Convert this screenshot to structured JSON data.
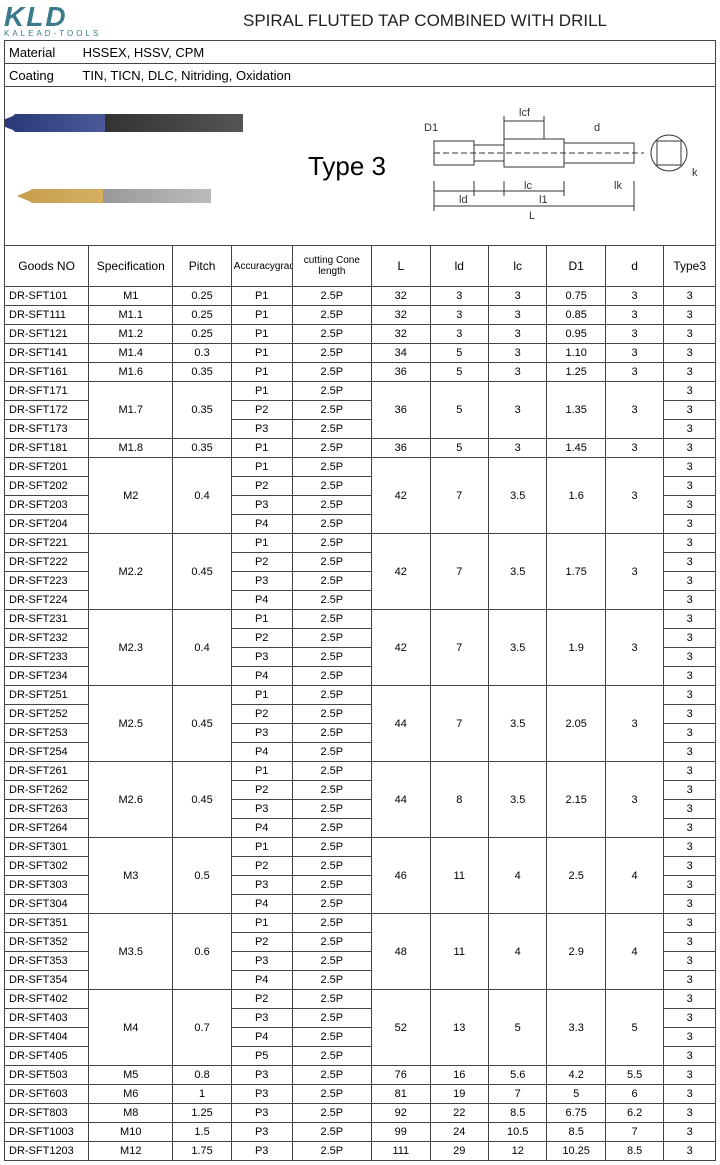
{
  "logo": {
    "main": "KLD",
    "sub": "KALEAD-TOOLS"
  },
  "title": "SPIRAL FLUTED TAP COMBINED WITH DRILL",
  "meta": {
    "material_label": "Material",
    "material_value": "HSSEX,  HSSV,  CPM",
    "coating_label": "Coating",
    "coating_value": "TIN,  TICN,  DLC, Nitriding,  Oxidation"
  },
  "type_label": "Type 3",
  "diagram_labels": {
    "D1": "D1",
    "lcf": "lcf",
    "d": "d",
    "ld": "ld",
    "lc": "lc",
    "l1": "l1",
    "lk": "lk",
    "L": "L",
    "k": "k"
  },
  "columns": [
    "Goods NO",
    "Specification",
    "Pitch",
    "Accuracygrade",
    "cutting Cone length",
    "L",
    "ld",
    "lc",
    "D1",
    "d",
    "Type3"
  ],
  "groups": [
    {
      "rows": [
        {
          "g": "DR-SFT101",
          "acc": "P1",
          "cone": "2.5P",
          "t": "3"
        }
      ],
      "spec": "M1",
      "pitch": "0.25",
      "L": "32",
      "ld": "3",
      "lc": "3",
      "D1": "0.75",
      "d": "3"
    },
    {
      "rows": [
        {
          "g": "DR-SFT111",
          "acc": "P1",
          "cone": "2.5P",
          "t": "3"
        }
      ],
      "spec": "M1.1",
      "pitch": "0.25",
      "L": "32",
      "ld": "3",
      "lc": "3",
      "D1": "0.85",
      "d": "3"
    },
    {
      "rows": [
        {
          "g": "DR-SFT121",
          "acc": "P1",
          "cone": "2.5P",
          "t": "3"
        }
      ],
      "spec": "M1.2",
      "pitch": "0.25",
      "L": "32",
      "ld": "3",
      "lc": "3",
      "D1": "0.95",
      "d": "3"
    },
    {
      "rows": [
        {
          "g": "DR-SFT141",
          "acc": "P1",
          "cone": "2.5P",
          "t": "3"
        }
      ],
      "spec": "M1.4",
      "pitch": "0.3",
      "L": "34",
      "ld": "5",
      "lc": "3",
      "D1": "1.10",
      "d": "3"
    },
    {
      "rows": [
        {
          "g": "DR-SFT161",
          "acc": "P1",
          "cone": "2.5P",
          "t": "3"
        }
      ],
      "spec": "M1.6",
      "pitch": "0.35",
      "L": "36",
      "ld": "5",
      "lc": "3",
      "D1": "1.25",
      "d": "3"
    },
    {
      "rows": [
        {
          "g": "DR-SFT171",
          "acc": "P1",
          "cone": "2.5P",
          "t": "3"
        },
        {
          "g": "DR-SFT172",
          "acc": "P2",
          "cone": "2.5P",
          "t": "3"
        },
        {
          "g": "DR-SFT173",
          "acc": "P3",
          "cone": "2.5P",
          "t": "3"
        }
      ],
      "spec": "M1.7",
      "pitch": "0.35",
      "L": "36",
      "ld": "5",
      "lc": "3",
      "D1": "1.35",
      "d": "3"
    },
    {
      "rows": [
        {
          "g": "DR-SFT181",
          "acc": "P1",
          "cone": "2.5P",
          "t": "3"
        }
      ],
      "spec": "M1.8",
      "pitch": "0.35",
      "L": "36",
      "ld": "5",
      "lc": "3",
      "D1": "1.45",
      "d": "3"
    },
    {
      "rows": [
        {
          "g": "DR-SFT201",
          "acc": "P1",
          "cone": "2.5P",
          "t": "3"
        },
        {
          "g": "DR-SFT202",
          "acc": "P2",
          "cone": "2.5P",
          "t": "3"
        },
        {
          "g": "DR-SFT203",
          "acc": "P3",
          "cone": "2.5P",
          "t": "3"
        },
        {
          "g": "DR-SFT204",
          "acc": "P4",
          "cone": "2.5P",
          "t": "3"
        }
      ],
      "spec": "M2",
      "pitch": "0.4",
      "L": "42",
      "ld": "7",
      "lc": "3.5",
      "D1": "1.6",
      "d": "3"
    },
    {
      "rows": [
        {
          "g": "DR-SFT221",
          "acc": "P1",
          "cone": "2.5P",
          "t": "3"
        },
        {
          "g": "DR-SFT222",
          "acc": "P2",
          "cone": "2.5P",
          "t": "3"
        },
        {
          "g": "DR-SFT223",
          "acc": "P3",
          "cone": "2.5P",
          "t": "3"
        },
        {
          "g": "DR-SFT224",
          "acc": "P4",
          "cone": "2.5P",
          "t": "3"
        }
      ],
      "spec": "M2.2",
      "pitch": "0.45",
      "L": "42",
      "ld": "7",
      "lc": "3.5",
      "D1": "1.75",
      "d": "3"
    },
    {
      "rows": [
        {
          "g": "DR-SFT231",
          "acc": "P1",
          "cone": "2.5P",
          "t": "3"
        },
        {
          "g": "DR-SFT232",
          "acc": "P2",
          "cone": "2.5P",
          "t": "3"
        },
        {
          "g": "DR-SFT233",
          "acc": "P3",
          "cone": "2.5P",
          "t": "3"
        },
        {
          "g": "DR-SFT234",
          "acc": "P4",
          "cone": "2.5P",
          "t": "3"
        }
      ],
      "spec": "M2.3",
      "pitch": "0.4",
      "L": "42",
      "ld": "7",
      "lc": "3.5",
      "D1": "1.9",
      "d": "3"
    },
    {
      "rows": [
        {
          "g": "DR-SFT251",
          "acc": "P1",
          "cone": "2.5P",
          "t": "3"
        },
        {
          "g": "DR-SFT252",
          "acc": "P2",
          "cone": "2.5P",
          "t": "3"
        },
        {
          "g": "DR-SFT253",
          "acc": "P3",
          "cone": "2.5P",
          "t": "3"
        },
        {
          "g": "DR-SFT254",
          "acc": "P4",
          "cone": "2.5P",
          "t": "3"
        }
      ],
      "spec": "M2.5",
      "pitch": "0.45",
      "L": "44",
      "ld": "7",
      "lc": "3.5",
      "D1": "2.05",
      "d": "3"
    },
    {
      "rows": [
        {
          "g": "DR-SFT261",
          "acc": "P1",
          "cone": "2.5P",
          "t": "3"
        },
        {
          "g": "DR-SFT262",
          "acc": "P2",
          "cone": "2.5P",
          "t": "3"
        },
        {
          "g": "DR-SFT263",
          "acc": "P3",
          "cone": "2.5P",
          "t": "3"
        },
        {
          "g": "DR-SFT264",
          "acc": "P4",
          "cone": "2.5P",
          "t": "3"
        }
      ],
      "spec": "M2.6",
      "pitch": "0.45",
      "L": "44",
      "ld": "8",
      "lc": "3.5",
      "D1": "2.15",
      "d": "3"
    },
    {
      "rows": [
        {
          "g": "DR-SFT301",
          "acc": "P1",
          "cone": "2.5P",
          "t": "3"
        },
        {
          "g": "DR-SFT302",
          "acc": "P2",
          "cone": "2.5P",
          "t": "3"
        },
        {
          "g": "DR-SFT303",
          "acc": "P3",
          "cone": "2.5P",
          "t": "3"
        },
        {
          "g": "DR-SFT304",
          "acc": "P4",
          "cone": "2.5P",
          "t": "3"
        }
      ],
      "spec": "M3",
      "pitch": "0.5",
      "L": "46",
      "ld": "11",
      "lc": "4",
      "D1": "2.5",
      "d": "4"
    },
    {
      "rows": [
        {
          "g": "DR-SFT351",
          "acc": "P1",
          "cone": "2.5P",
          "t": "3"
        },
        {
          "g": "DR-SFT352",
          "acc": "P2",
          "cone": "2.5P",
          "t": "3"
        },
        {
          "g": "DR-SFT353",
          "acc": "P3",
          "cone": "2.5P",
          "t": "3"
        },
        {
          "g": "DR-SFT354",
          "acc": "P4",
          "cone": "2.5P",
          "t": "3"
        }
      ],
      "spec": "M3.5",
      "pitch": "0.6",
      "L": "48",
      "ld": "11",
      "lc": "4",
      "D1": "2.9",
      "d": "4"
    },
    {
      "rows": [
        {
          "g": "DR-SFT402",
          "acc": "P2",
          "cone": "2.5P",
          "t": "3"
        },
        {
          "g": "DR-SFT403",
          "acc": "P3",
          "cone": "2.5P",
          "t": "3"
        },
        {
          "g": "DR-SFT404",
          "acc": "P4",
          "cone": "2.5P",
          "t": "3"
        },
        {
          "g": "DR-SFT405",
          "acc": "P5",
          "cone": "2.5P",
          "t": "3"
        }
      ],
      "spec": "M4",
      "pitch": "0.7",
      "L": "52",
      "ld": "13",
      "lc": "5",
      "D1": "3.3",
      "d": "5"
    },
    {
      "rows": [
        {
          "g": "DR-SFT503",
          "acc": "P3",
          "cone": "2.5P",
          "t": "3"
        }
      ],
      "spec": "M5",
      "pitch": "0.8",
      "L": "76",
      "ld": "16",
      "lc": "5.6",
      "D1": "4.2",
      "d": "5.5"
    },
    {
      "rows": [
        {
          "g": "DR-SFT603",
          "acc": "P3",
          "cone": "2.5P",
          "t": "3"
        }
      ],
      "spec": "M6",
      "pitch": "1",
      "L": "81",
      "ld": "19",
      "lc": "7",
      "D1": "5",
      "d": "6"
    },
    {
      "rows": [
        {
          "g": "DR-SFT803",
          "acc": "P3",
          "cone": "2.5P",
          "t": "3"
        }
      ],
      "spec": "M8",
      "pitch": "1.25",
      "L": "92",
      "ld": "22",
      "lc": "8.5",
      "D1": "6.75",
      "d": "6.2"
    },
    {
      "rows": [
        {
          "g": "DR-SFT1003",
          "acc": "P3",
          "cone": "2.5P",
          "t": "3"
        }
      ],
      "spec": "M10",
      "pitch": "1.5",
      "L": "99",
      "ld": "24",
      "lc": "10.5",
      "D1": "8.5",
      "d": "7"
    },
    {
      "rows": [
        {
          "g": "DR-SFT1203",
          "acc": "P3",
          "cone": "2.5P",
          "t": "3"
        }
      ],
      "spec": "M12",
      "pitch": "1.75",
      "L": "111",
      "ld": "29",
      "lc": "12",
      "D1": "10.25",
      "d": "8.5"
    }
  ]
}
